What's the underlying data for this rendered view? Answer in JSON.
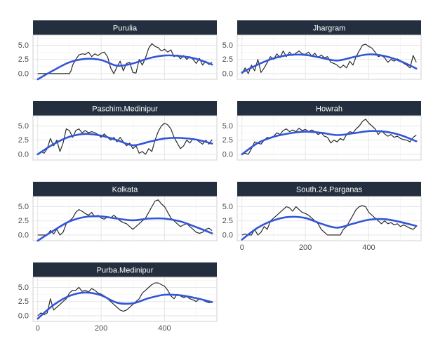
{
  "chart_data": {
    "type": "line",
    "layout": "facet-wrap",
    "title": "",
    "xlabel": "",
    "ylabel": "",
    "xlim": [
      -15,
      565
    ],
    "ylim": [
      -1.0,
      6.8
    ],
    "x_ticks": [
      0,
      200,
      400
    ],
    "y_ticks": [
      0.0,
      2.5,
      5.0
    ],
    "y_tick_labels": [
      "0.0",
      "2.5",
      "5.0"
    ],
    "grid": true,
    "legend": "none",
    "colors": {
      "raw_line": "#2b2b2b",
      "smooth_line": "#3355d8",
      "strip_bg": "#232f3e",
      "strip_text": "#ffffff",
      "grid": "#e0e0e0",
      "axis_text": "#4d4d4d"
    },
    "panels": [
      {
        "name": "Purulia",
        "raw": {
          "x": [
            0,
            30,
            60,
            90,
            100,
            105,
            110,
            120,
            130,
            140,
            150,
            160,
            170,
            180,
            190,
            200,
            210,
            220,
            230,
            240,
            250,
            260,
            270,
            280,
            290,
            300,
            310,
            320,
            330,
            340,
            350,
            360,
            370,
            380,
            390,
            400,
            410,
            420,
            430,
            440,
            450,
            460,
            470,
            480,
            490,
            500,
            510,
            520,
            530,
            540,
            550
          ],
          "y": [
            0,
            0,
            0,
            0,
            0,
            0.5,
            1.5,
            2.5,
            3.3,
            3.5,
            3.4,
            3.8,
            3.0,
            3.5,
            3.2,
            3.6,
            3.8,
            3.0,
            1.0,
            0,
            1.2,
            2.2,
            0.5,
            1.8,
            2.0,
            0.2,
            0.1,
            2.5,
            1.5,
            2.8,
            4.5,
            5.3,
            4.8,
            4.6,
            4.0,
            4.3,
            3.8,
            4.2,
            3.0,
            3.3,
            2.6,
            3.2,
            2.5,
            3.0,
            2.5,
            1.8,
            2.7,
            1.5,
            2.2,
            1.6,
            2.0
          ]
        },
        "smooth": {
          "x": [
            0,
            50,
            100,
            150,
            200,
            250,
            300,
            350,
            400,
            450,
            500,
            550
          ],
          "y": [
            -1.0,
            0.6,
            2.0,
            2.6,
            2.4,
            1.4,
            1.8,
            2.7,
            3.2,
            3.1,
            2.6,
            1.6
          ]
        }
      },
      {
        "name": "Jhargram",
        "raw": {
          "x": [
            0,
            10,
            20,
            30,
            40,
            50,
            60,
            70,
            80,
            90,
            100,
            110,
            120,
            130,
            140,
            150,
            160,
            170,
            180,
            190,
            200,
            210,
            220,
            230,
            240,
            250,
            260,
            270,
            280,
            290,
            300,
            310,
            320,
            330,
            340,
            350,
            360,
            370,
            380,
            390,
            400,
            410,
            420,
            430,
            440,
            450,
            460,
            470,
            480,
            490,
            500,
            510,
            520,
            530,
            540,
            550
          ],
          "y": [
            0,
            1.0,
            0,
            1.5,
            0.5,
            2.5,
            0.2,
            1.0,
            2.0,
            3.0,
            2.5,
            3.5,
            2.8,
            4.0,
            3.0,
            3.8,
            3.2,
            3.6,
            4.0,
            3.5,
            3.4,
            3.8,
            3.1,
            3.6,
            2.8,
            3.3,
            2.8,
            3.0,
            2.0,
            1.8,
            1.5,
            1.0,
            1.5,
            1.0,
            2.2,
            1.5,
            3.0,
            4.0,
            5.0,
            5.2,
            4.8,
            4.5,
            3.8,
            3.0,
            3.2,
            2.8,
            2.0,
            2.5,
            2.2,
            2.6,
            2.3,
            1.8,
            1.5,
            1.0,
            3.2,
            2.0
          ]
        },
        "smooth": {
          "x": [
            0,
            50,
            100,
            150,
            200,
            250,
            300,
            350,
            400,
            450,
            500,
            550
          ],
          "y": [
            0.2,
            1.6,
            2.7,
            3.3,
            3.3,
            2.8,
            2.3,
            2.9,
            3.4,
            3.1,
            2.2,
            0.9
          ]
        }
      },
      {
        "name": "Paschim.Medinipur",
        "raw": {
          "x": [
            0,
            10,
            20,
            30,
            40,
            50,
            60,
            70,
            80,
            90,
            100,
            110,
            120,
            130,
            140,
            150,
            160,
            170,
            180,
            190,
            200,
            210,
            220,
            230,
            240,
            250,
            260,
            270,
            280,
            290,
            300,
            310,
            320,
            330,
            340,
            350,
            360,
            370,
            380,
            390,
            400,
            410,
            420,
            430,
            440,
            450,
            460,
            470,
            480,
            490,
            500,
            510,
            520,
            530,
            540,
            550
          ],
          "y": [
            0,
            0.5,
            0.2,
            1.0,
            2.8,
            1.5,
            2.5,
            0.5,
            2.0,
            4.5,
            4.2,
            3.0,
            4.2,
            4.5,
            3.8,
            4.2,
            3.8,
            4.0,
            3.8,
            3.5,
            3.0,
            3.6,
            3.0,
            2.5,
            3.0,
            2.2,
            3.0,
            2.2,
            1.5,
            2.0,
            1.0,
            1.5,
            0.2,
            0.5,
            0,
            1.0,
            0.5,
            2.5,
            4.0,
            5.0,
            5.5,
            5.2,
            4.5,
            3.0,
            2.0,
            1.0,
            1.5,
            2.5,
            2.0,
            2.8,
            2.6,
            2.2,
            1.8,
            2.5,
            1.8,
            2.6
          ]
        },
        "smooth": {
          "x": [
            0,
            50,
            100,
            150,
            200,
            250,
            300,
            350,
            400,
            450,
            500,
            550
          ],
          "y": [
            0,
            1.8,
            3.1,
            3.6,
            3.3,
            2.5,
            1.6,
            2.2,
            2.8,
            2.9,
            2.6,
            1.9
          ]
        }
      },
      {
        "name": "Howrah",
        "raw": {
          "x": [
            0,
            10,
            20,
            30,
            40,
            50,
            60,
            70,
            80,
            90,
            100,
            110,
            120,
            130,
            140,
            150,
            160,
            170,
            180,
            190,
            200,
            210,
            220,
            230,
            240,
            250,
            260,
            270,
            280,
            290,
            300,
            310,
            320,
            330,
            340,
            350,
            360,
            370,
            380,
            390,
            400,
            410,
            420,
            430,
            440,
            450,
            460,
            470,
            480,
            490,
            500,
            510,
            520,
            530,
            540,
            550
          ],
          "y": [
            0,
            0.2,
            0,
            1.0,
            2.2,
            2.0,
            1.8,
            2.5,
            3.0,
            2.8,
            3.2,
            3.8,
            3.5,
            4.2,
            4.5,
            4.0,
            4.3,
            4.0,
            4.6,
            4.2,
            4.4,
            4.0,
            4.3,
            4.0,
            3.5,
            3.8,
            3.2,
            3.0,
            2.0,
            2.5,
            2.2,
            2.8,
            2.5,
            3.5,
            4.0,
            3.8,
            4.5,
            5.0,
            5.8,
            6.2,
            5.5,
            5.0,
            4.5,
            3.5,
            4.2,
            3.6,
            3.2,
            3.5,
            3.0,
            3.2,
            2.8,
            2.6,
            2.5,
            2.2,
            3.0,
            3.4
          ]
        },
        "smooth": {
          "x": [
            0,
            50,
            100,
            150,
            200,
            250,
            300,
            350,
            400,
            450,
            500,
            550
          ],
          "y": [
            0,
            2.0,
            3.1,
            3.7,
            4.0,
            3.8,
            3.4,
            3.7,
            4.1,
            4.0,
            3.4,
            2.3
          ]
        }
      },
      {
        "name": "Kolkata",
        "raw": {
          "x": [
            0,
            10,
            20,
            30,
            40,
            50,
            60,
            70,
            80,
            90,
            100,
            110,
            120,
            130,
            140,
            150,
            160,
            170,
            180,
            190,
            200,
            210,
            220,
            230,
            240,
            250,
            260,
            270,
            280,
            290,
            300,
            310,
            320,
            330,
            340,
            350,
            360,
            370,
            380,
            390,
            400,
            410,
            420,
            430,
            440,
            450,
            460,
            470,
            480,
            490,
            500,
            510,
            520,
            530,
            540,
            550
          ],
          "y": [
            0,
            0,
            0,
            0,
            0.8,
            0.2,
            1.0,
            0,
            0.5,
            2.0,
            2.5,
            3.0,
            4.0,
            4.5,
            4.2,
            3.8,
            3.5,
            4.0,
            3.2,
            3.5,
            3.0,
            2.8,
            3.2,
            3.0,
            3.5,
            3.0,
            2.5,
            2.2,
            2.0,
            1.5,
            1.0,
            1.5,
            2.0,
            2.5,
            3.0,
            4.0,
            5.0,
            6.0,
            6.2,
            5.5,
            5.0,
            4.0,
            3.0,
            2.5,
            2.0,
            1.5,
            1.8,
            2.0,
            1.5,
            1.0,
            0.5,
            0.3,
            0.5,
            1.0,
            1.2,
            0.8
          ]
        },
        "smooth": {
          "x": [
            0,
            50,
            100,
            150,
            200,
            250,
            300,
            350,
            400,
            450,
            500,
            550
          ],
          "y": [
            -1.0,
            0.8,
            2.4,
            3.2,
            3.3,
            2.9,
            2.6,
            2.9,
            2.9,
            2.4,
            1.4,
            0.3
          ]
        }
      },
      {
        "name": "South.24.Parganas",
        "raw": {
          "x": [
            0,
            10,
            20,
            30,
            40,
            50,
            60,
            70,
            80,
            90,
            100,
            110,
            120,
            130,
            140,
            150,
            160,
            170,
            180,
            190,
            200,
            210,
            220,
            230,
            240,
            250,
            260,
            270,
            280,
            290,
            300,
            310,
            320,
            330,
            340,
            350,
            360,
            370,
            380,
            390,
            400,
            410,
            420,
            430,
            440,
            450,
            460,
            470,
            480,
            490,
            500,
            510,
            520,
            530,
            540,
            550
          ],
          "y": [
            0,
            0.2,
            0,
            0,
            1.0,
            0,
            0.5,
            1.5,
            1.0,
            2.5,
            3.0,
            3.5,
            4.0,
            4.5,
            5.0,
            4.8,
            4.2,
            5.0,
            4.5,
            4.0,
            3.8,
            3.5,
            3.0,
            2.5,
            2.0,
            1.0,
            0.5,
            0,
            0,
            0,
            0,
            0,
            1.0,
            1.5,
            2.5,
            3.5,
            4.5,
            5.0,
            5.2,
            5.0,
            4.0,
            3.5,
            3.0,
            2.5,
            2.0,
            2.5,
            2.0,
            2.2,
            1.8,
            2.0,
            1.5,
            1.8,
            1.5,
            1.2,
            1.0,
            1.5
          ]
        },
        "smooth": {
          "x": [
            0,
            50,
            100,
            150,
            200,
            250,
            300,
            350,
            400,
            450,
            500,
            550
          ],
          "y": [
            -0.8,
            1.3,
            2.6,
            3.2,
            3.0,
            2.0,
            1.3,
            2.0,
            2.7,
            2.8,
            2.3,
            1.6
          ]
        }
      },
      {
        "name": "Purba.Medinipur",
        "raw": {
          "x": [
            0,
            10,
            20,
            30,
            40,
            50,
            60,
            70,
            80,
            90,
            100,
            110,
            120,
            130,
            140,
            150,
            160,
            170,
            180,
            190,
            200,
            210,
            220,
            230,
            240,
            250,
            260,
            270,
            280,
            290,
            300,
            310,
            320,
            330,
            340,
            350,
            360,
            370,
            380,
            390,
            400,
            410,
            420,
            430,
            440,
            450,
            460,
            470,
            480,
            490,
            500,
            510,
            520,
            530,
            540,
            550
          ],
          "y": [
            0,
            0.5,
            0.2,
            0.5,
            3.0,
            1.0,
            1.5,
            2.0,
            2.5,
            3.0,
            4.0,
            4.5,
            4.5,
            5.0,
            4.3,
            4.5,
            4.2,
            4.8,
            4.5,
            4.0,
            3.8,
            3.5,
            3.0,
            2.5,
            2.0,
            1.5,
            1.0,
            0.8,
            1.0,
            1.5,
            2.0,
            2.5,
            3.0,
            4.0,
            4.5,
            5.0,
            5.5,
            5.8,
            5.8,
            5.5,
            5.2,
            4.5,
            3.5,
            3.0,
            3.8,
            3.5,
            3.2,
            3.4,
            3.0,
            2.8,
            2.5,
            3.0,
            2.8,
            2.5,
            2.3,
            2.4
          ]
        },
        "smooth": {
          "x": [
            0,
            50,
            100,
            150,
            200,
            250,
            300,
            350,
            400,
            450,
            500,
            550
          ],
          "y": [
            -0.5,
            1.9,
            3.5,
            4.1,
            3.6,
            2.3,
            2.2,
            3.1,
            3.7,
            3.6,
            3.1,
            2.4
          ]
        }
      }
    ]
  }
}
